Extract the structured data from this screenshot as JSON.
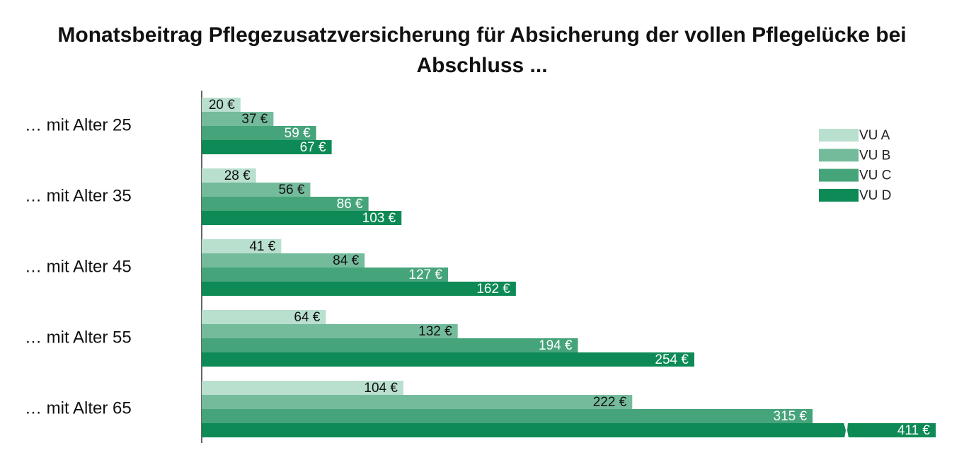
{
  "chart_data": {
    "type": "bar",
    "orientation": "horizontal",
    "title": "Monatsbeitrag Pflegezusatzversicherung für Absicherung der vollen Pflegelücke bei Abschluss ...",
    "categories": [
      "… mit Alter 25",
      "… mit Alter 35",
      "… mit Alter 45",
      "… mit Alter 55",
      "… mit Alter 65"
    ],
    "series": [
      {
        "name": "VU A",
        "color": "#b9dfcf",
        "values": [
          20,
          28,
          41,
          64,
          104
        ],
        "value_labels": [
          "20 €",
          "28 €",
          "41 €",
          "64 €",
          "104 €"
        ]
      },
      {
        "name": "VU B",
        "color": "#74bb9c",
        "values": [
          37,
          56,
          84,
          132,
          222
        ],
        "value_labels": [
          "37 €",
          "56 €",
          "84 €",
          "132 €",
          "222 €"
        ]
      },
      {
        "name": "VU C",
        "color": "#46a47a",
        "values": [
          59,
          86,
          127,
          194,
          315
        ],
        "value_labels": [
          "59 €",
          "86 €",
          "127 €",
          "194 €",
          "315 €"
        ]
      },
      {
        "name": "VU D",
        "color": "#0d8a55",
        "values": [
          67,
          103,
          162,
          254,
          411
        ],
        "value_labels": [
          "67 €",
          "103 €",
          "162 €",
          "254 €",
          "411 €"
        ]
      }
    ],
    "legend": "right"
  }
}
